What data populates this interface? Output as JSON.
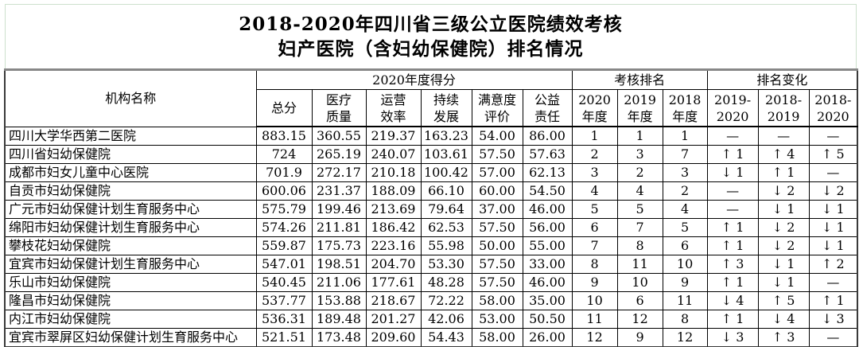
{
  "title": {
    "line1": "2018-2020年四川省三级公立医院绩效考核",
    "line2": "妇产医院（含妇幼保健院）排名情况"
  },
  "table": {
    "name_header": "机构名称",
    "groups": [
      "2020年度得分",
      "考核排名",
      "排名变化"
    ],
    "sub_headers": [
      "总分",
      "医疗\n质量",
      "运营\n效率",
      "持续\n发展",
      "满意度\n评价",
      "公益\n责任",
      "2020\n年度",
      "2019\n年度",
      "2018\n年度",
      "2019-\n2020",
      "2018-\n2019",
      "2018-\n2020"
    ],
    "rows": [
      {
        "name": "四川大学华西第二医院",
        "values": [
          "883.15",
          "360.55",
          "219.37",
          "163.23",
          "54.00",
          "86.00",
          "1",
          "1",
          "1",
          "—",
          "—",
          "—"
        ]
      },
      {
        "name": "四川省妇幼保健院",
        "values": [
          "724",
          "265.19",
          "240.07",
          "103.61",
          "57.50",
          "57.63",
          "2",
          "3",
          "7",
          "↑ 1",
          "↑ 4",
          "↑ 5"
        ]
      },
      {
        "name": "成都市妇女儿童中心医院",
        "values": [
          "701.9",
          "272.17",
          "210.18",
          "100.42",
          "57.00",
          "62.13",
          "3",
          "2",
          "3",
          "↓ 1",
          "↑ 1",
          "—"
        ]
      },
      {
        "name": "自贡市妇幼保健院",
        "values": [
          "600.06",
          "231.37",
          "188.09",
          "66.10",
          "60.00",
          "54.50",
          "4",
          "4",
          "2",
          "—",
          "↓ 2",
          "↓ 2"
        ]
      },
      {
        "name": "广元市妇幼保健计划生育服务中心",
        "values": [
          "575.79",
          "199.46",
          "213.69",
          "79.64",
          "37.00",
          "46.00",
          "5",
          "5",
          "4",
          "—",
          "↓ 1",
          "↓ 1"
        ]
      },
      {
        "name": "绵阳市妇幼保健计划生育服务中心",
        "values": [
          "574.26",
          "211.81",
          "186.42",
          "62.53",
          "57.50",
          "56.00",
          "6",
          "7",
          "5",
          "↑ 1",
          "↓ 2",
          "↓ 1"
        ]
      },
      {
        "name": "攀枝花妇幼保健院",
        "values": [
          "559.87",
          "175.73",
          "223.16",
          "55.98",
          "50.00",
          "55.00",
          "7",
          "8",
          "6",
          "↑ 1",
          "↓ 2",
          "↓ 1"
        ]
      },
      {
        "name": "宜宾市妇幼保健计划生育服务中心",
        "values": [
          "547.01",
          "198.51",
          "204.70",
          "53.30",
          "57.50",
          "33.00",
          "8",
          "11",
          "10",
          "↑ 3",
          "↓ 1",
          "↑ 2"
        ]
      },
      {
        "name": "乐山市妇幼保健院",
        "values": [
          "540.45",
          "211.06",
          "177.61",
          "48.28",
          "57.50",
          "46.00",
          "9",
          "10",
          "9",
          "↑ 1",
          "↓ 1",
          "—"
        ]
      },
      {
        "name": "隆昌市妇幼保健院",
        "values": [
          "537.77",
          "153.88",
          "218.67",
          "72.22",
          "58.00",
          "35.00",
          "10",
          "6",
          "11",
          "↓ 4",
          "↑ 5",
          "↑ 1"
        ]
      },
      {
        "name": "内江市妇幼保健院",
        "values": [
          "536.31",
          "189.48",
          "201.27",
          "42.06",
          "53.00",
          "50.50",
          "11",
          "12",
          "8",
          "↑ 1",
          "↓ 4",
          "↓ 3"
        ]
      },
      {
        "name": "宜宾市翠屏区妇幼保健计划生育服务中心",
        "values": [
          "521.51",
          "173.48",
          "209.60",
          "54.43",
          "58.00",
          "26.00",
          "12",
          "9",
          "12",
          "↓ 3",
          "↑ 3",
          "—"
        ]
      }
    ]
  },
  "colors": {
    "title_border": "#cde0cd",
    "table_inner_border": "#000000",
    "table_top_border": "#878787",
    "text": "#000000",
    "background": "#ffffff"
  }
}
